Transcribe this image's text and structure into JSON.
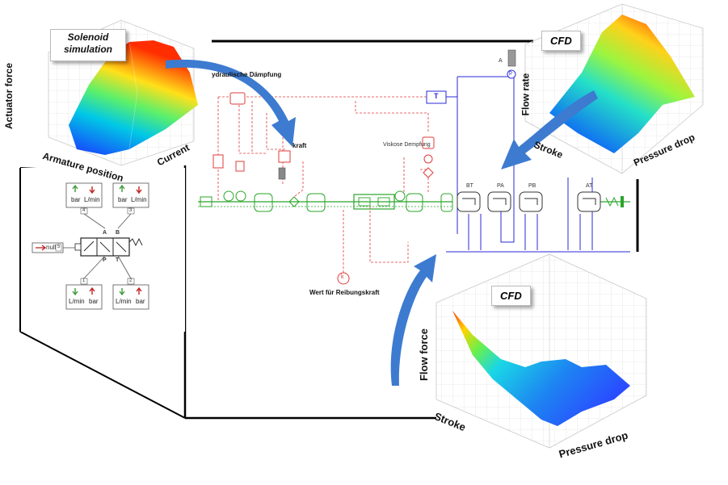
{
  "sim": {
    "labels": {
      "solenoid_caption": "Solenoid simulation",
      "solenoid_z": "Actuator force",
      "solenoid_x": "Armature position",
      "solenoid_y": "Current",
      "cfd_top_caption": "CFD",
      "cfd_top_z": "Flow rate",
      "cfd_top_x": "Stroke",
      "cfd_top_y": "Pressure drop",
      "cfd_bottom_caption": "CFD",
      "cfd_bottom_z": "Flow force",
      "cfd_bottom_x": "Stroke",
      "cfd_bottom_y": "Pressure drop"
    },
    "circuit": {
      "damping_label": "ydraulische Dämpfung",
      "kraft_label": "kraft",
      "viskose_label": "Viskose Dempfung",
      "friction_label": "Wert für Reibungskraft",
      "k_symbol": "k",
      "t_block": "T",
      "p_symbol": "p",
      "a_symbol": "A",
      "ports": [
        "BT",
        "PA",
        "PB",
        "AT"
      ]
    },
    "valve": {
      "top_left_box": [
        "bar",
        "L/min"
      ],
      "top_right_box": [
        "bar",
        "L/min"
      ],
      "bottom_left_box": [
        "L/min",
        "bar"
      ],
      "bottom_right_box": [
        "L/min",
        "bar"
      ],
      "port_a": "A",
      "port_b": "B",
      "port_p": "P",
      "port_t": "T",
      "input_label": "null",
      "num_4": "4",
      "num_3": "3",
      "num_1": "1",
      "num_2": "2",
      "num_5": "5"
    },
    "colors": {
      "arrow_blue": "#3d7bd0",
      "hydraulic_green": "#2aa52a",
      "signal_red": "#e23b3b",
      "mech_blue": "#2a2ad8"
    }
  }
}
